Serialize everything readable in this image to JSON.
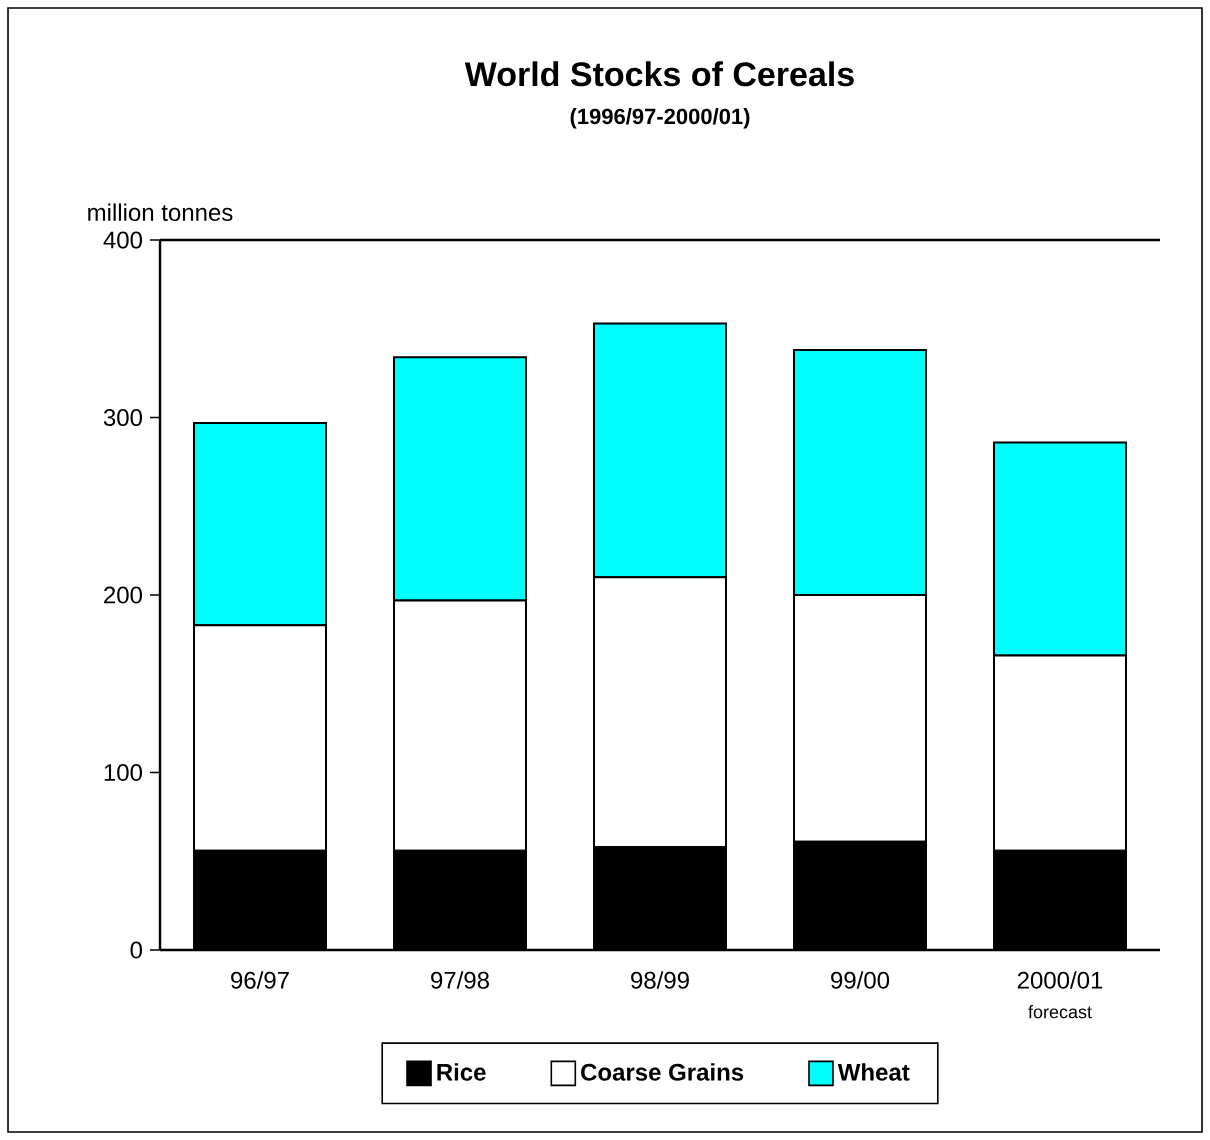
{
  "chart_data": {
    "type": "bar",
    "title": "World Stocks of Cereals",
    "subtitle": "(1996/97-2000/01)",
    "ylabel": "million tonnes",
    "categories": [
      "96/97",
      "97/98",
      "98/99",
      "99/00",
      "2000/01"
    ],
    "stacked": true,
    "series": [
      {
        "name": "Rice",
        "color": "#000000",
        "values": [
          56,
          56,
          58,
          61,
          56
        ]
      },
      {
        "name": "Coarse Grains",
        "color": "#ffffff",
        "values": [
          127,
          141,
          152,
          139,
          110
        ]
      },
      {
        "name": "Wheat",
        "color": "#00ffff",
        "values": [
          114,
          137,
          143,
          138,
          120
        ]
      }
    ],
    "ylim": [
      0,
      400
    ],
    "yticks": [
      0,
      100,
      200,
      300,
      400
    ],
    "legend": "bottom",
    "grid": false,
    "annotations": [
      "forecast"
    ]
  }
}
